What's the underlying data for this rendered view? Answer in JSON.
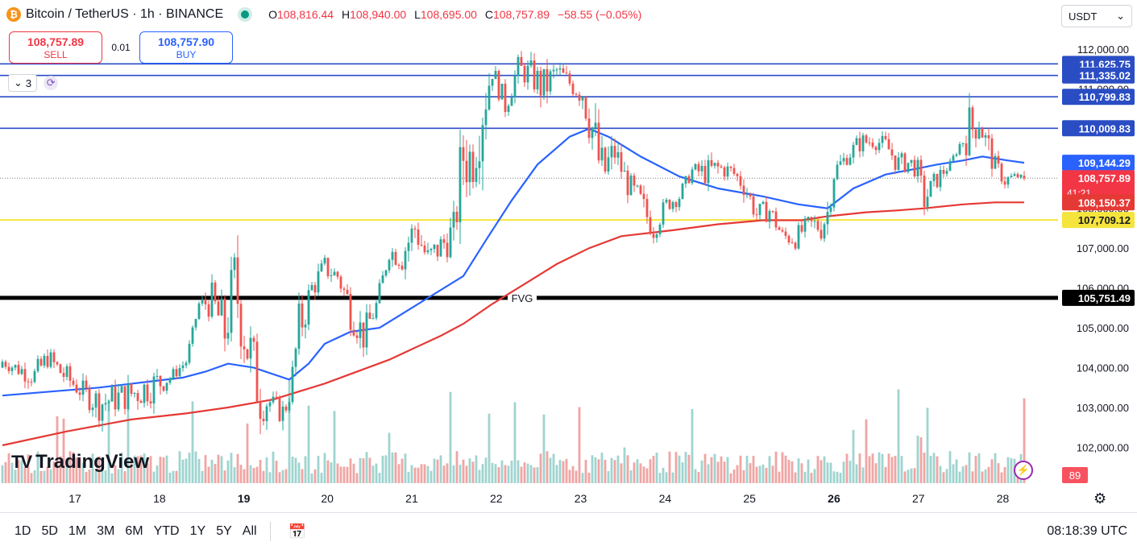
{
  "header": {
    "coin_icon_name": "bitcoin-icon",
    "coin_glyph": "₿",
    "title": "Bitcoin / TetherUS · 1h · BINANCE",
    "open_key": "O",
    "open": "108,816.44",
    "high_key": "H",
    "high": "108,940.00",
    "low_key": "L",
    "low": "108,695.00",
    "close_key": "C",
    "close": "108,757.89",
    "change": "−58.55 (−0.05%)"
  },
  "trade": {
    "sell_price": "108,757.89",
    "sell_label": "SELL",
    "spread": "0.01",
    "buy_price": "108,757.90",
    "buy_label": "BUY"
  },
  "indicators": {
    "count": "3"
  },
  "currency": "USDT",
  "logo": "TradingView",
  "bottom": {
    "ranges": [
      "1D",
      "5D",
      "1M",
      "3M",
      "6M",
      "YTD",
      "1Y",
      "5Y",
      "All"
    ],
    "clock": "08:18:39 UTC"
  },
  "colors": {
    "up": "#26a69a",
    "down": "#ef5350",
    "ema_fast": "#2962ff",
    "ema_slow": "#e53935",
    "hline_blue": "#2a4dc4",
    "hline_yellow": "#f5e43b",
    "hline_black": "#000000",
    "vol_up": "#9fd4cf",
    "vol_down": "#f0a5a3"
  },
  "chart_data": {
    "type": "candlestick",
    "symbol": "Bitcoin / TetherUS",
    "interval": "1h",
    "exchange": "BINANCE",
    "ylim": [
      101100,
      112300
    ],
    "y_ticks": [
      102000,
      103000,
      104000,
      105000,
      106000,
      107000,
      108000,
      109000,
      110000,
      111000,
      112000
    ],
    "y_tick_labels": [
      "102,000.00",
      "103,000.00",
      "104,000.00",
      "105,000.00",
      "106,000.00",
      "107,000.00",
      "108,000.00",
      "109,000.00",
      "110,000.00",
      "111,000.00",
      "112,000.00"
    ],
    "x_labels": [
      {
        "label": "17",
        "bold": false,
        "pos": 0.065
      },
      {
        "label": "18",
        "bold": false,
        "pos": 0.147
      },
      {
        "label": "19",
        "bold": true,
        "pos": 0.229
      },
      {
        "label": "20",
        "bold": false,
        "pos": 0.31
      },
      {
        "label": "21",
        "bold": false,
        "pos": 0.392
      },
      {
        "label": "22",
        "bold": false,
        "pos": 0.474
      },
      {
        "label": "23",
        "bold": false,
        "pos": 0.556
      },
      {
        "label": "24",
        "bold": false,
        "pos": 0.638
      },
      {
        "label": "25",
        "bold": false,
        "pos": 0.72
      },
      {
        "label": "26",
        "bold": true,
        "pos": 0.802
      },
      {
        "label": "27",
        "bold": false,
        "pos": 0.884
      },
      {
        "label": "28",
        "bold": false,
        "pos": 0.966
      }
    ],
    "horizontal_lines": [
      {
        "price": 111625.75,
        "label": "111,625.75",
        "color": "#2a4dc4"
      },
      {
        "price": 111335.02,
        "label": "111,335.02",
        "color": "#2a4dc4"
      },
      {
        "price": 110799.83,
        "label": "110,799.83",
        "color": "#2a4dc4"
      },
      {
        "price": 110009.83,
        "label": "110,009.83",
        "color": "#2a4dc4"
      },
      {
        "price": 107709.12,
        "label": "107,709.12",
        "color": "#f5e43b"
      },
      {
        "price": 105751.49,
        "label": "105,751.49",
        "color": "#000000",
        "text": "FVG"
      }
    ],
    "price_badges": [
      {
        "price": 109144.29,
        "label": "109,144.29",
        "color": "#2962ff"
      },
      {
        "price": 108757.89,
        "label": "108,757.89",
        "sub": "41:21",
        "color": "#f23645"
      },
      {
        "price": 108150.37,
        "label": "108,150.37",
        "color": "#e53935"
      }
    ],
    "volume_badge": "89",
    "anchors": [
      [
        0,
        104000,
        104300
      ],
      [
        4,
        103800,
        104200
      ],
      [
        10,
        103500,
        104100
      ],
      [
        14,
        104000,
        104500
      ],
      [
        18,
        103600,
        104200
      ],
      [
        24,
        103200,
        103700
      ],
      [
        30,
        102700,
        103500
      ],
      [
        36,
        102900,
        103600
      ],
      [
        42,
        103000,
        103800
      ],
      [
        48,
        103200,
        104000
      ],
      [
        52,
        103600,
        103900
      ],
      [
        57,
        104000,
        104300
      ],
      [
        61,
        105500,
        105700
      ],
      [
        65,
        105200,
        106100
      ],
      [
        69,
        104200,
        105600
      ],
      [
        72,
        105300,
        107000
      ],
      [
        76,
        103600,
        105600
      ],
      [
        80,
        102600,
        103900
      ],
      [
        84,
        102900,
        103300
      ],
      [
        87,
        102500,
        103200
      ],
      [
        89,
        103100,
        103400
      ],
      [
        92,
        104300,
        105600
      ],
      [
        96,
        105700,
        106300
      ],
      [
        100,
        106200,
        106800
      ],
      [
        104,
        106100,
        106500
      ],
      [
        108,
        105000,
        106000
      ],
      [
        112,
        104400,
        105200
      ],
      [
        116,
        105300,
        105800
      ],
      [
        120,
        106700,
        107100
      ],
      [
        124,
        106400,
        107300
      ],
      [
        128,
        107100,
        107900
      ],
      [
        132,
        106300,
        107100
      ],
      [
        136,
        106700,
        107400
      ],
      [
        140,
        106900,
        107900
      ],
      [
        143,
        108300,
        110500
      ],
      [
        146,
        108600,
        109800
      ],
      [
        149,
        109600,
        111800
      ],
      [
        152,
        111200,
        111700
      ],
      [
        156,
        110300,
        110900
      ],
      [
        160,
        111200,
        111800
      ],
      [
        164,
        111000,
        111700
      ],
      [
        168,
        110500,
        111500
      ],
      [
        172,
        111200,
        111700
      ],
      [
        176,
        110900,
        111400
      ],
      [
        180,
        110500,
        111400
      ],
      [
        183,
        109300,
        110700
      ],
      [
        186,
        108000,
        109600
      ],
      [
        190,
        109000,
        109800
      ],
      [
        194,
        108300,
        108900
      ],
      [
        198,
        107700,
        108500
      ],
      [
        202,
        107200,
        107800
      ],
      [
        206,
        107900,
        108300
      ],
      [
        210,
        108100,
        108500
      ],
      [
        214,
        108800,
        109100
      ],
      [
        218,
        108600,
        109200
      ],
      [
        222,
        108700,
        109300
      ],
      [
        226,
        108800,
        109100
      ],
      [
        230,
        108300,
        108900
      ],
      [
        234,
        107600,
        108100
      ],
      [
        238,
        107700,
        108200
      ],
      [
        242,
        107100,
        107500
      ],
      [
        246,
        107000,
        107500
      ],
      [
        250,
        107400,
        107800
      ],
      [
        254,
        107200,
        107900
      ],
      [
        256,
        107500,
        108300
      ],
      [
        258,
        108600,
        109200
      ],
      [
        262,
        109100,
        109500
      ],
      [
        266,
        109400,
        109900
      ],
      [
        270,
        109500,
        109900
      ],
      [
        274,
        109400,
        109800
      ],
      [
        278,
        108800,
        109400
      ],
      [
        282,
        109000,
        109300
      ],
      [
        284,
        108600,
        109200
      ],
      [
        286,
        107900,
        108500
      ],
      [
        290,
        108500,
        109000
      ],
      [
        294,
        109000,
        109200
      ],
      [
        297,
        109500,
        109700
      ],
      [
        300,
        109300,
        110600
      ],
      [
        303,
        109900,
        110400
      ],
      [
        306,
        109000,
        109900
      ],
      [
        308,
        108900,
        109300
      ],
      [
        311,
        108500,
        108900
      ],
      [
        314,
        108700,
        108900
      ],
      [
        317,
        108757.89,
        108816.44
      ]
    ],
    "ema_fast_points": [
      [
        0,
        103300
      ],
      [
        30,
        103500
      ],
      [
        56,
        103750
      ],
      [
        63,
        103900
      ],
      [
        70,
        104100
      ],
      [
        78,
        104000
      ],
      [
        89,
        103700
      ],
      [
        95,
        104100
      ],
      [
        100,
        104600
      ],
      [
        108,
        104900
      ],
      [
        117,
        105000
      ],
      [
        125,
        105400
      ],
      [
        133,
        105800
      ],
      [
        143,
        106300
      ],
      [
        150,
        107200
      ],
      [
        158,
        108200
      ],
      [
        166,
        109100
      ],
      [
        176,
        109800
      ],
      [
        182,
        110000
      ],
      [
        188,
        109800
      ],
      [
        198,
        109300
      ],
      [
        210,
        108800
      ],
      [
        222,
        108500
      ],
      [
        236,
        108300
      ],
      [
        247,
        108100
      ],
      [
        256,
        108000
      ],
      [
        264,
        108500
      ],
      [
        274,
        108850
      ],
      [
        284,
        109000
      ],
      [
        290,
        109100
      ],
      [
        298,
        109200
      ],
      [
        304,
        109300
      ],
      [
        312,
        109200
      ],
      [
        317,
        109144.29
      ]
    ],
    "ema_slow_points": [
      [
        0,
        102050
      ],
      [
        20,
        102400
      ],
      [
        40,
        102700
      ],
      [
        57,
        102850
      ],
      [
        70,
        103000
      ],
      [
        84,
        103200
      ],
      [
        100,
        103600
      ],
      [
        120,
        104200
      ],
      [
        136,
        104800
      ],
      [
        143,
        105100
      ],
      [
        152,
        105600
      ],
      [
        162,
        106100
      ],
      [
        172,
        106600
      ],
      [
        182,
        107000
      ],
      [
        192,
        107300
      ],
      [
        208,
        107450
      ],
      [
        222,
        107600
      ],
      [
        236,
        107700
      ],
      [
        248,
        107700
      ],
      [
        256,
        107800
      ],
      [
        268,
        107900
      ],
      [
        278,
        107950
      ],
      [
        286,
        108000
      ],
      [
        298,
        108100
      ],
      [
        308,
        108150
      ],
      [
        317,
        108150.37
      ]
    ]
  }
}
